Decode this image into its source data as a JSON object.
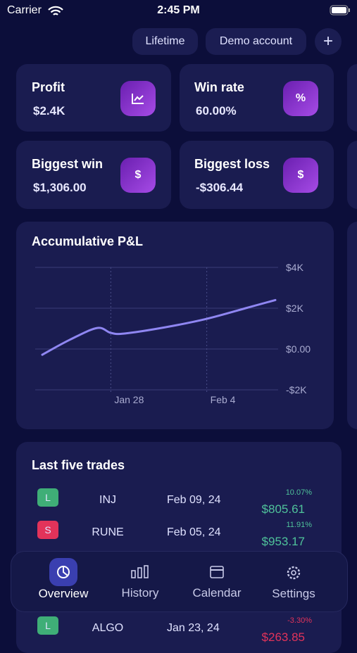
{
  "status_bar": {
    "carrier": "Carrier",
    "time": "2:45 PM"
  },
  "header": {
    "buttons": [
      "Lifetime",
      "Demo account",
      "+"
    ]
  },
  "stats": [
    {
      "label": "Profit",
      "value": "$2.4K"
    },
    {
      "label": "Win rate",
      "value": "60.00%",
      "icon_text": "%"
    },
    {
      "label": "Biggest win",
      "value": "$1,306.00",
      "icon_text": "$"
    },
    {
      "label": "Biggest loss",
      "value": "-$306.44",
      "icon_text": "$"
    }
  ],
  "chart": {
    "type": "line",
    "title": "Accumulative P&L",
    "color": "#8f86f2",
    "x": [
      "Jan 23",
      "Jan 25",
      "Jan 27",
      "Jan 28",
      "Jan 29",
      "Feb 1",
      "Feb 4",
      "Feb 7",
      "Feb 9"
    ],
    "values": [
      -280,
      450,
      1030,
      790,
      760,
      1070,
      1480,
      2030,
      2400
    ],
    "xlim": [
      "Jan 23",
      "Feb 9"
    ],
    "xticks": [
      "Jan 28",
      "Feb 4"
    ],
    "ylim": [
      -2000,
      4000
    ],
    "yticks": [
      {
        "value": 4000,
        "label": "$4K"
      },
      {
        "value": 2000,
        "label": "$2K"
      },
      {
        "value": 0,
        "label": "$0.00"
      },
      {
        "value": -2000,
        "label": "-$2K"
      }
    ],
    "grid": true
  },
  "trades": {
    "title": "Last five trades",
    "rows": [
      {
        "side": "L",
        "symbol": "INJ",
        "date": "Feb 09, 24",
        "percent": "10.07%",
        "pnl": "$805.61"
      },
      {
        "side": "S",
        "symbol": "RUNE",
        "date": "Feb 05, 24",
        "percent": "11.91%",
        "pnl": "$953.17"
      },
      {
        "side": "L",
        "symbol": "ALGO",
        "date": "Jan 23, 24",
        "percent": "-3.30%",
        "pnl": "$263.85"
      }
    ]
  },
  "tab_bar": [
    "Overview",
    "History",
    "Calendar",
    "Settings"
  ]
}
